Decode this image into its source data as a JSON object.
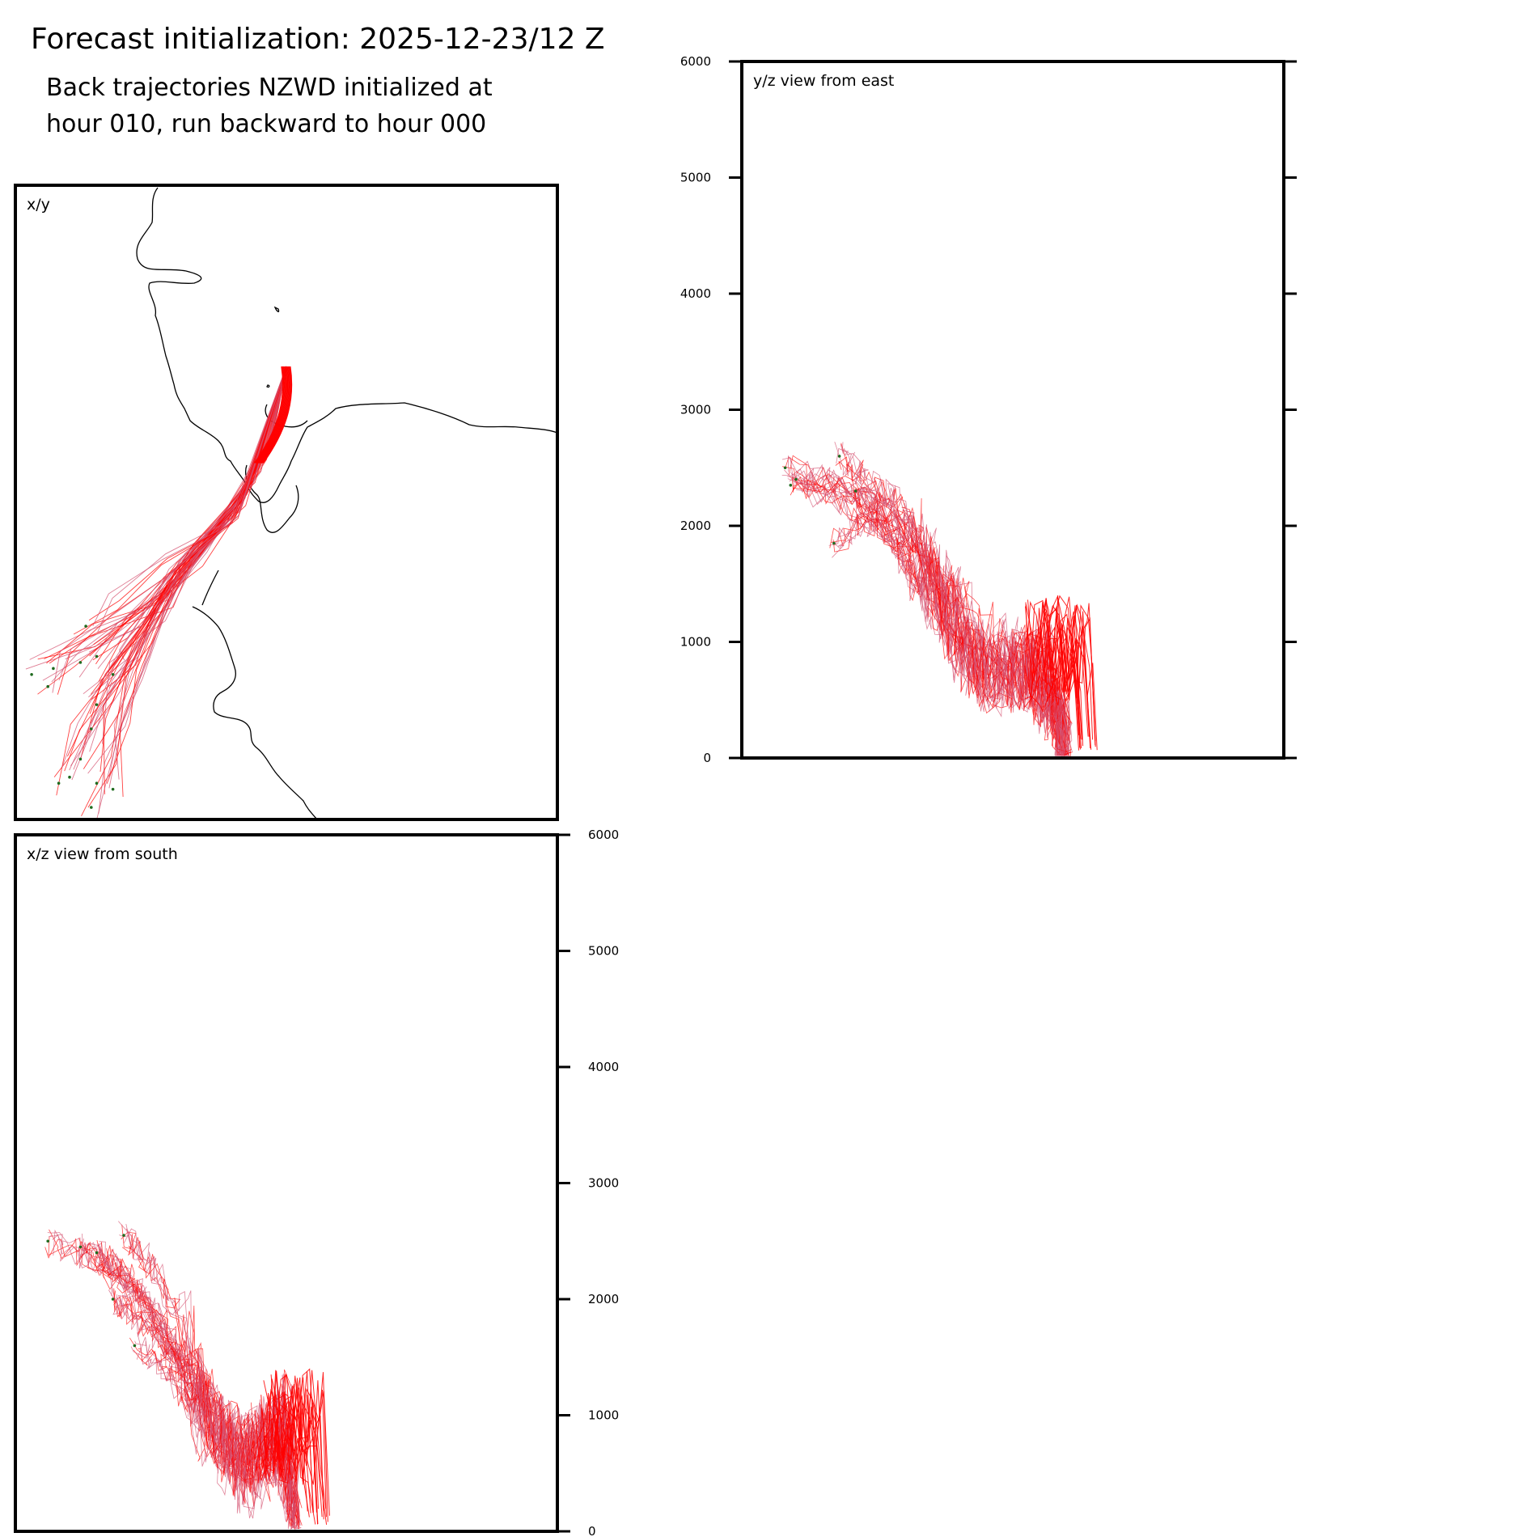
{
  "header": {
    "title": "Forecast initialization: 2025-12-23/12 Z",
    "subtitle_line1": "Back trajectories NZWD initialized at",
    "subtitle_line2": "hour 010, run backward to hour 000"
  },
  "colors": {
    "trajectory_recent": "#ff0000",
    "trajectory_old": "#d4506f",
    "start_marker": "#1f6b1f",
    "coastline": "#000000",
    "axes": "#000000"
  },
  "chart_data": [
    {
      "type": "line",
      "panel": "x/y map view",
      "label": "x/y",
      "map_features": [
        "coastline"
      ],
      "series": [
        {
          "points": [
            [
              0.5,
              0.6
            ],
            [
              0.47,
              0.85
            ],
            [
              0.41,
              1.05
            ],
            [
              0.35,
              1.22
            ],
            [
              0.27,
              1.36
            ],
            [
              0.16,
              1.5
            ],
            [
              0.03,
              1.62
            ]
          ]
        },
        {
          "points": [
            [
              0.5,
              0.6
            ],
            [
              0.47,
              0.86
            ],
            [
              0.4,
              1.07
            ],
            [
              0.33,
              1.24
            ],
            [
              0.24,
              1.38
            ],
            [
              0.14,
              1.5
            ],
            [
              0.07,
              1.6
            ]
          ]
        },
        {
          "points": [
            [
              0.5,
              0.6
            ],
            [
              0.46,
              0.88
            ],
            [
              0.39,
              1.1
            ],
            [
              0.31,
              1.28
            ],
            [
              0.23,
              1.44
            ],
            [
              0.15,
              1.56
            ]
          ]
        },
        {
          "points": [
            [
              0.5,
              0.6
            ],
            [
              0.46,
              0.9
            ],
            [
              0.38,
              1.12
            ],
            [
              0.29,
              1.3
            ],
            [
              0.21,
              1.46
            ],
            [
              0.12,
              1.58
            ]
          ]
        },
        {
          "points": [
            [
              0.5,
              0.6
            ],
            [
              0.45,
              0.92
            ],
            [
              0.37,
              1.14
            ],
            [
              0.28,
              1.34
            ],
            [
              0.21,
              1.52
            ],
            [
              0.18,
              1.62
            ]
          ]
        },
        {
          "points": [
            [
              0.5,
              0.6
            ],
            [
              0.45,
              0.94
            ],
            [
              0.36,
              1.16
            ],
            [
              0.27,
              1.38
            ],
            [
              0.2,
              1.58
            ],
            [
              0.15,
              1.72
            ]
          ]
        },
        {
          "points": [
            [
              0.5,
              0.6
            ],
            [
              0.44,
              0.96
            ],
            [
              0.35,
              1.18
            ],
            [
              0.26,
              1.42
            ],
            [
              0.19,
              1.62
            ],
            [
              0.14,
              1.8
            ]
          ]
        },
        {
          "points": [
            [
              0.5,
              0.6
            ],
            [
              0.44,
              0.98
            ],
            [
              0.34,
              1.2
            ],
            [
              0.25,
              1.46
            ],
            [
              0.18,
              1.66
            ],
            [
              0.12,
              1.9
            ]
          ]
        },
        {
          "points": [
            [
              0.5,
              0.6
            ],
            [
              0.43,
              1.0
            ],
            [
              0.33,
              1.22
            ],
            [
              0.24,
              1.5
            ],
            [
              0.17,
              1.72
            ],
            [
              0.1,
              1.96
            ]
          ]
        },
        {
          "points": [
            [
              0.5,
              0.6
            ],
            [
              0.43,
              1.02
            ],
            [
              0.32,
              1.24
            ],
            [
              0.24,
              1.54
            ],
            [
              0.18,
              1.76
            ],
            [
              0.15,
              1.98
            ]
          ]
        },
        {
          "points": [
            [
              0.5,
              0.6
            ],
            [
              0.42,
              1.04
            ],
            [
              0.31,
              1.26
            ],
            [
              0.23,
              1.58
            ],
            [
              0.19,
              1.82
            ],
            [
              0.18,
              2.0
            ]
          ]
        },
        {
          "points": [
            [
              0.5,
              0.6
            ],
            [
              0.42,
              1.06
            ],
            [
              0.3,
              1.28
            ],
            [
              0.22,
              1.62
            ],
            [
              0.17,
              1.88
            ],
            [
              0.14,
              2.06
            ]
          ]
        },
        {
          "points": [
            [
              0.5,
              0.6
            ],
            [
              0.41,
              1.08
            ],
            [
              0.29,
              1.3
            ],
            [
              0.2,
              1.58
            ],
            [
              0.12,
              1.8
            ],
            [
              0.08,
              1.98
            ]
          ]
        },
        {
          "points": [
            [
              0.5,
              0.6
            ],
            [
              0.41,
              1.1
            ],
            [
              0.28,
              1.28
            ],
            [
              0.19,
              1.44
            ],
            [
              0.1,
              1.56
            ],
            [
              0.06,
              1.66
            ]
          ]
        },
        {
          "points": [
            [
              0.5,
              0.6
            ],
            [
              0.4,
              1.12
            ],
            [
              0.27,
              1.24
            ],
            [
              0.18,
              1.38
            ],
            [
              0.13,
              1.46
            ]
          ]
        }
      ],
      "start_points": [
        [
          0.03,
          1.62
        ],
        [
          0.07,
          1.6
        ],
        [
          0.15,
          1.56
        ],
        [
          0.12,
          1.58
        ],
        [
          0.18,
          1.62
        ],
        [
          0.15,
          1.72
        ],
        [
          0.14,
          1.8
        ],
        [
          0.12,
          1.9
        ],
        [
          0.1,
          1.96
        ],
        [
          0.15,
          1.98
        ],
        [
          0.18,
          2.0
        ],
        [
          0.14,
          2.06
        ],
        [
          0.08,
          1.98
        ],
        [
          0.06,
          1.66
        ],
        [
          0.13,
          1.46
        ]
      ]
    },
    {
      "type": "line",
      "panel": "y/z view",
      "label": "y/z view from east",
      "ylabel": "",
      "ylim": [
        0,
        6000
      ],
      "yticks": [
        0,
        1000,
        2000,
        3000,
        4000,
        5000,
        6000
      ],
      "series": [
        {
          "points": [
            [
              0.08,
              2500
            ],
            [
              0.18,
              2350
            ],
            [
              0.3,
              2000
            ],
            [
              0.36,
              1500
            ],
            [
              0.4,
              900
            ],
            [
              0.48,
              700
            ],
            [
              0.56,
              800
            ],
            [
              0.59,
              150
            ],
            [
              0.6,
              50
            ]
          ]
        },
        {
          "points": [
            [
              0.1,
              2400
            ],
            [
              0.2,
              2300
            ],
            [
              0.28,
              2100
            ],
            [
              0.35,
              1700
            ],
            [
              0.41,
              1200
            ],
            [
              0.5,
              900
            ],
            [
              0.55,
              600
            ],
            [
              0.6,
              100
            ]
          ]
        },
        {
          "points": [
            [
              0.09,
              2350
            ],
            [
              0.19,
              2200
            ],
            [
              0.27,
              1900
            ],
            [
              0.34,
              1400
            ],
            [
              0.42,
              1000
            ],
            [
              0.49,
              750
            ],
            [
              0.57,
              850
            ],
            [
              0.6,
              200
            ]
          ]
        },
        {
          "points": [
            [
              0.17,
              1850
            ],
            [
              0.24,
              2100
            ],
            [
              0.31,
              1800
            ],
            [
              0.37,
              1300
            ],
            [
              0.45,
              800
            ],
            [
              0.53,
              700
            ],
            [
              0.58,
              400
            ],
            [
              0.6,
              50
            ]
          ]
        },
        {
          "points": [
            [
              0.18,
              2600
            ],
            [
              0.23,
              2400
            ],
            [
              0.29,
              2200
            ],
            [
              0.33,
              1900
            ],
            [
              0.38,
              1100
            ],
            [
              0.46,
              600
            ],
            [
              0.54,
              900
            ],
            [
              0.6,
              300
            ]
          ]
        },
        {
          "points": [
            [
              0.21,
              2300
            ],
            [
              0.26,
              2000
            ],
            [
              0.32,
              1600
            ],
            [
              0.39,
              1300
            ],
            [
              0.44,
              700
            ],
            [
              0.52,
              800
            ],
            [
              0.56,
              500
            ],
            [
              0.6,
              150
            ]
          ]
        }
      ],
      "start_points": [
        [
          0.08,
          2500
        ],
        [
          0.1,
          2400
        ],
        [
          0.09,
          2350
        ],
        [
          0.17,
          1850
        ],
        [
          0.18,
          2600
        ],
        [
          0.21,
          2300
        ]
      ]
    },
    {
      "type": "line",
      "panel": "x/z view",
      "label": "x/z view from south",
      "ylabel": "",
      "ylim": [
        0,
        6000
      ],
      "yticks": [
        0,
        1000,
        2000,
        3000,
        4000,
        5000,
        6000
      ],
      "series": [
        {
          "points": [
            [
              0.06,
              2500
            ],
            [
              0.14,
              2350
            ],
            [
              0.22,
              2050
            ],
            [
              0.3,
              1500
            ],
            [
              0.36,
              1000
            ],
            [
              0.42,
              700
            ],
            [
              0.48,
              900
            ],
            [
              0.52,
              100
            ]
          ]
        },
        {
          "points": [
            [
              0.12,
              2450
            ],
            [
              0.18,
              2300
            ],
            [
              0.25,
              1900
            ],
            [
              0.32,
              1300
            ],
            [
              0.38,
              800
            ],
            [
              0.45,
              600
            ],
            [
              0.5,
              1100
            ],
            [
              0.52,
              50
            ]
          ]
        },
        {
          "points": [
            [
              0.18,
              2000
            ],
            [
              0.22,
              1850
            ],
            [
              0.28,
              1600
            ],
            [
              0.34,
              1100
            ],
            [
              0.4,
              600
            ],
            [
              0.46,
              750
            ],
            [
              0.51,
              300
            ]
          ]
        },
        {
          "points": [
            [
              0.2,
              2550
            ],
            [
              0.25,
              2300
            ],
            [
              0.31,
              1800
            ],
            [
              0.35,
              1200
            ],
            [
              0.41,
              500
            ],
            [
              0.47,
              800
            ],
            [
              0.52,
              200
            ]
          ]
        },
        {
          "points": [
            [
              0.22,
              1600
            ],
            [
              0.28,
              1400
            ],
            [
              0.33,
              1000
            ],
            [
              0.39,
              700
            ],
            [
              0.44,
              400
            ],
            [
              0.5,
              900
            ],
            [
              0.52,
              150
            ]
          ]
        },
        {
          "points": [
            [
              0.15,
              2400
            ],
            [
              0.21,
              2200
            ],
            [
              0.27,
              1800
            ],
            [
              0.33,
              1400
            ],
            [
              0.37,
              900
            ],
            [
              0.43,
              650
            ],
            [
              0.49,
              1000
            ],
            [
              0.51,
              80
            ]
          ]
        }
      ],
      "start_points": [
        [
          0.06,
          2500
        ],
        [
          0.12,
          2450
        ],
        [
          0.18,
          2000
        ],
        [
          0.2,
          2550
        ],
        [
          0.22,
          1600
        ],
        [
          0.15,
          2400
        ]
      ]
    }
  ]
}
